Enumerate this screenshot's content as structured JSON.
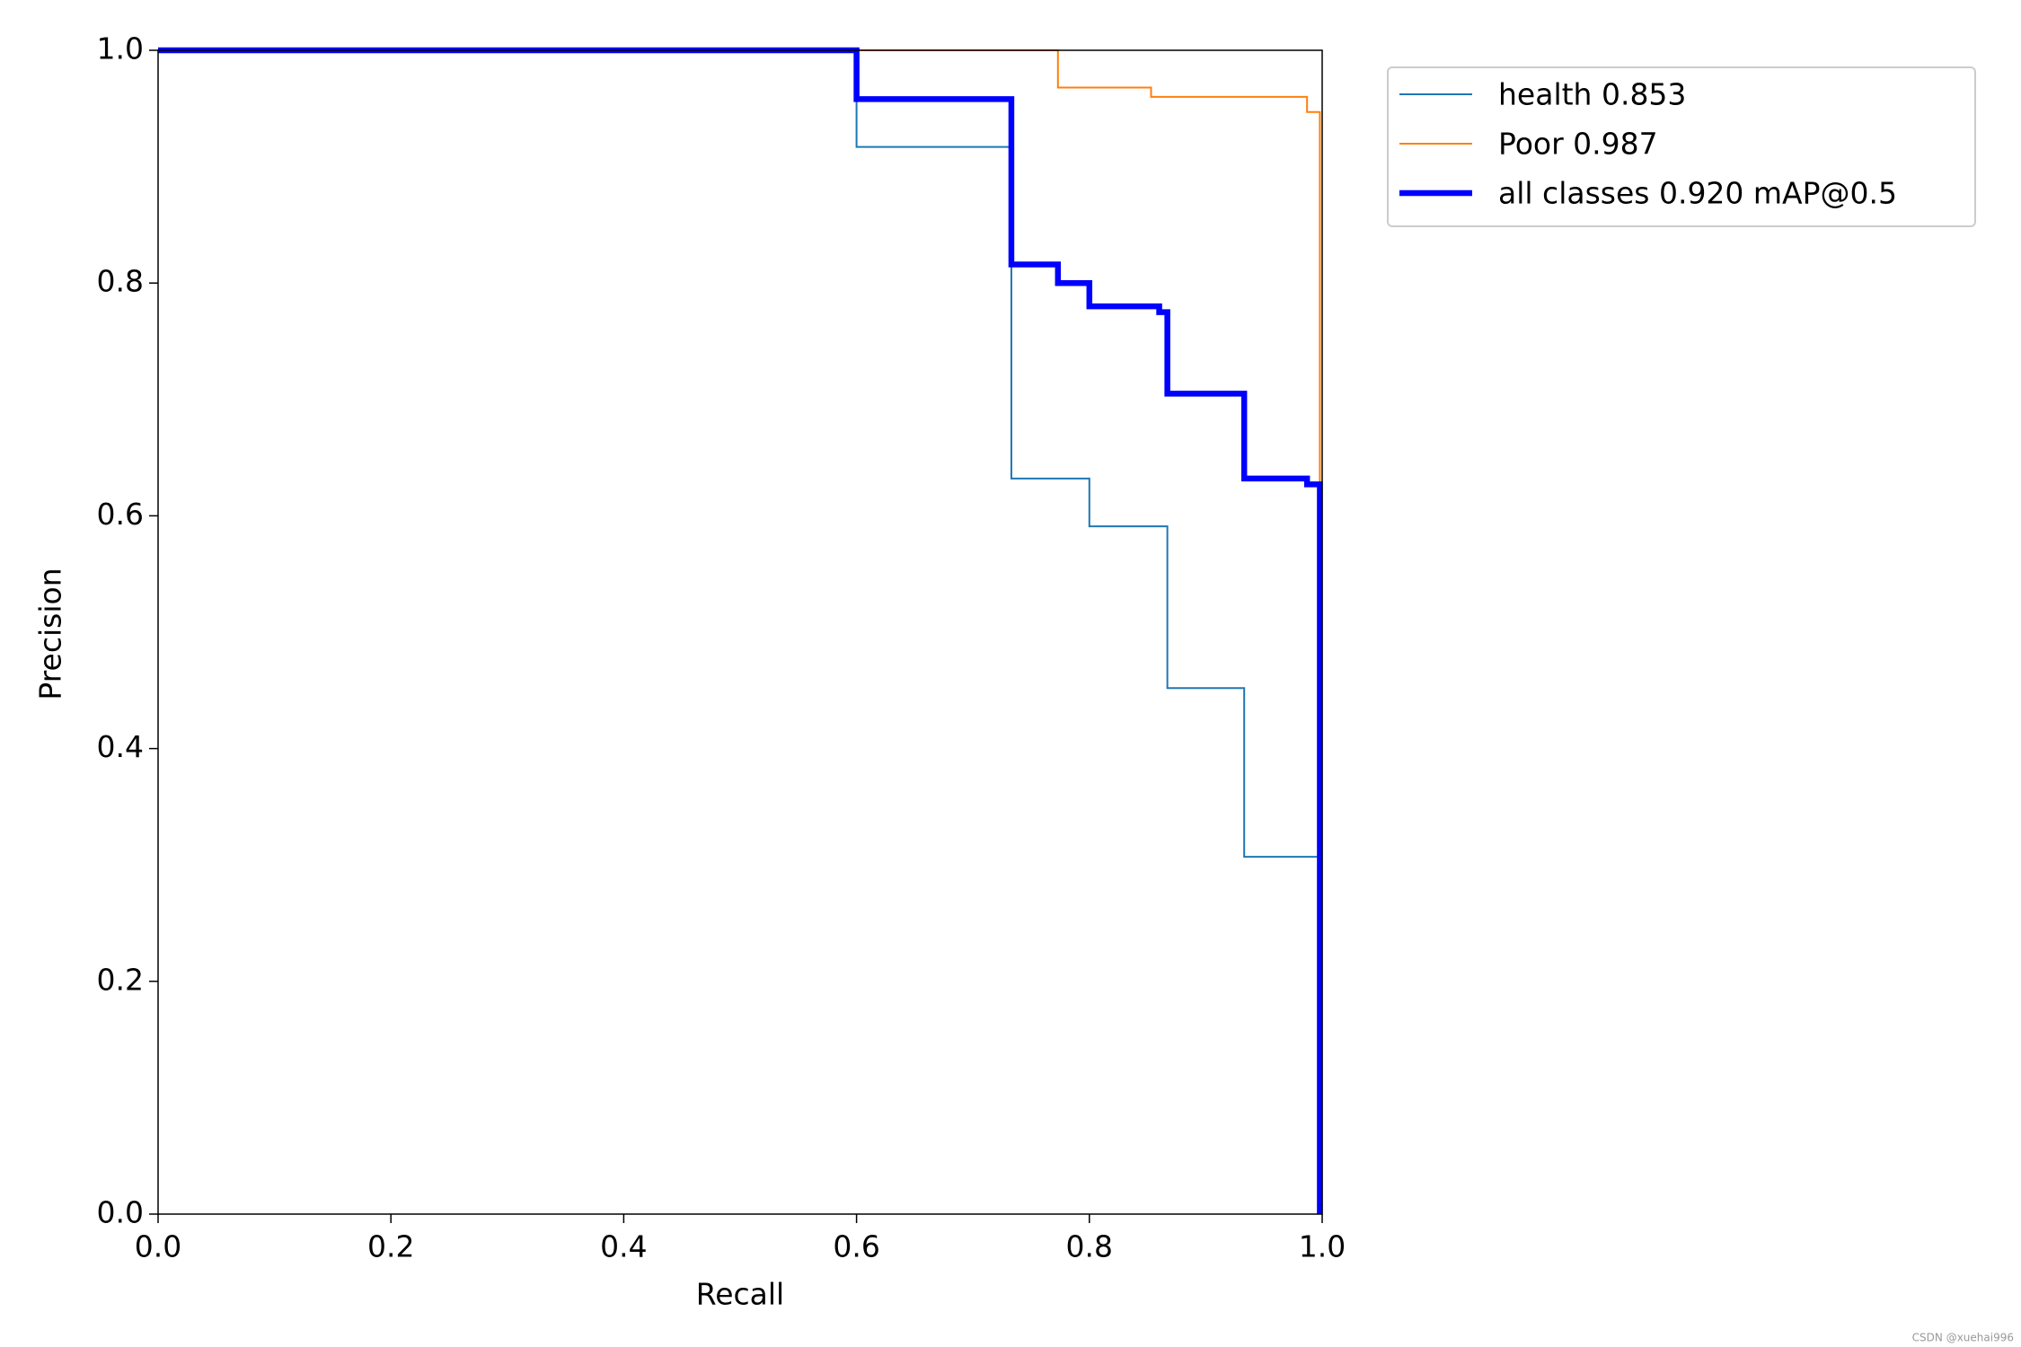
{
  "chart_data": {
    "type": "line",
    "xlabel": "Recall",
    "ylabel": "Precision",
    "xlim": [
      0,
      1
    ],
    "ylim": [
      0,
      1
    ],
    "xticks": [
      {
        "value": 0,
        "label": "0.0"
      },
      0.2,
      0.4,
      0.6,
      0.8,
      {
        "value": 1,
        "label": "1.0"
      }
    ],
    "yticks": [
      {
        "value": 0,
        "label": "0.0"
      },
      0.2,
      0.4,
      0.6,
      0.8,
      {
        "value": 1,
        "label": "1.0"
      }
    ],
    "series": [
      {
        "name": "health 0.853",
        "color": "#1f77b4",
        "linewidth": 2,
        "x": [
          0,
          0.6,
          0.6,
          0.733,
          0.733,
          0.8,
          0.8,
          0.867,
          0.867,
          0.933,
          0.933,
          0.998,
          0.998
        ],
        "values": [
          1,
          1,
          0.917,
          0.917,
          0.632,
          0.632,
          0.591,
          0.591,
          0.452,
          0.452,
          0.307,
          0.307,
          0
        ]
      },
      {
        "name": "Poor 0.987",
        "color": "#ff7f0e",
        "linewidth": 2,
        "x": [
          0,
          0.773,
          0.773,
          0.853,
          0.853,
          0.987,
          0.987,
          0.998,
          0.998
        ],
        "values": [
          1,
          1,
          0.968,
          0.968,
          0.96,
          0.96,
          0.947,
          0.947,
          0.62
        ]
      },
      {
        "name": "all classes 0.920 mAP@0.5",
        "color": "#0000ff",
        "linewidth": 6.5,
        "x": [
          0,
          0.6,
          0.6,
          0.733,
          0.733,
          0.773,
          0.773,
          0.8,
          0.8,
          0.86,
          0.86,
          0.867,
          0.867,
          0.933,
          0.933,
          0.987,
          0.987,
          0.998,
          0.998
        ],
        "values": [
          1,
          1,
          0.958,
          0.958,
          0.816,
          0.816,
          0.8,
          0.8,
          0.78,
          0.78,
          0.775,
          0.775,
          0.705,
          0.705,
          0.632,
          0.632,
          0.627,
          0.627,
          0
        ]
      }
    ],
    "watermark": "CSDN @xuehai996"
  }
}
